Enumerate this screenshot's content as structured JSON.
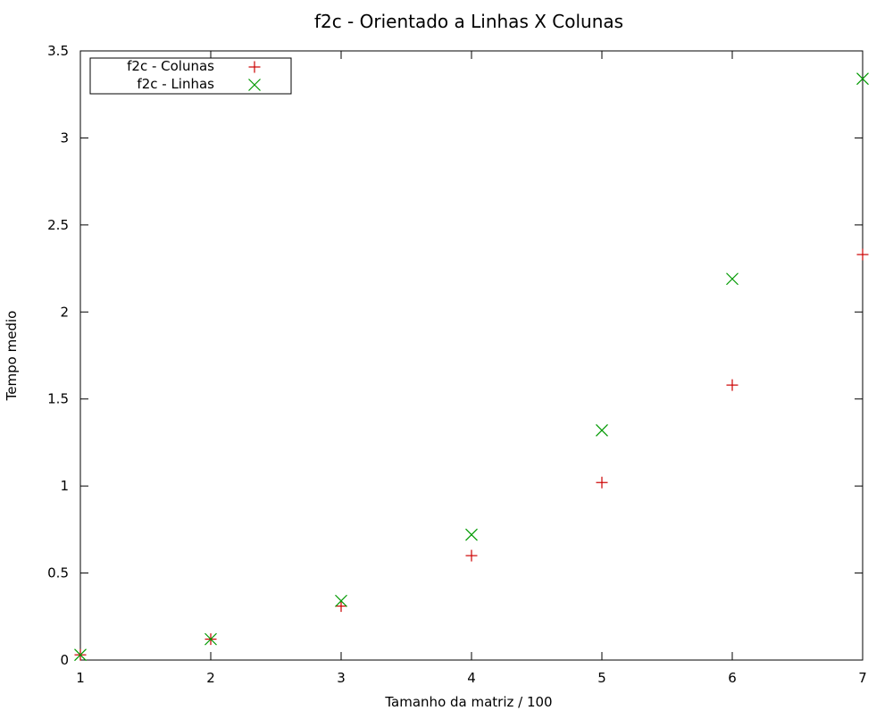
{
  "chart_data": {
    "type": "scatter",
    "title": "f2c - Orientado a Linhas X Colunas",
    "xlabel": "Tamanho da matriz / 100",
    "ylabel": "Tempo medio",
    "xlim": [
      1,
      7
    ],
    "ylim": [
      0,
      3.5
    ],
    "x_ticks": [
      "1",
      "2",
      "3",
      "4",
      "5",
      "6",
      "7"
    ],
    "y_ticks": [
      "0",
      "0.5",
      "1",
      "1.5",
      "2",
      "2.5",
      "3",
      "3.5"
    ],
    "grid": false,
    "legend_position": "top-left",
    "series": [
      {
        "name": "f2c - Colunas",
        "marker": "plus",
        "color": "#cc0000",
        "x": [
          1,
          2,
          3,
          4,
          5,
          6,
          7
        ],
        "y": [
          0.03,
          0.12,
          0.31,
          0.6,
          1.02,
          1.58,
          2.33
        ]
      },
      {
        "name": "f2c - Linhas",
        "marker": "cross",
        "color": "#009900",
        "x": [
          1,
          2,
          3,
          4,
          5,
          6,
          7
        ],
        "y": [
          0.03,
          0.12,
          0.34,
          0.72,
          1.32,
          2.19,
          3.34
        ]
      }
    ]
  }
}
